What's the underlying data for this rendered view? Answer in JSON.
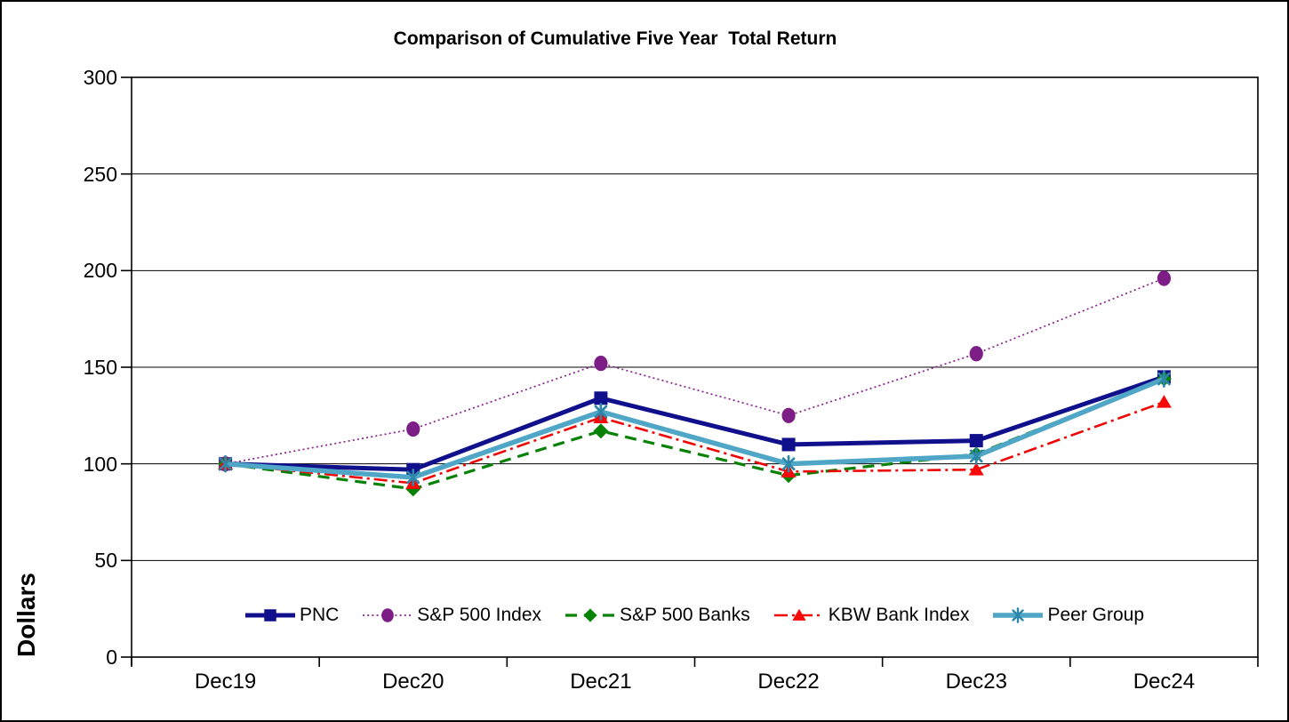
{
  "chart_data": {
    "type": "line",
    "title": "Comparison of Cumulative Five Year  Total Return",
    "ylabel": "Dollars",
    "xlabel": "",
    "categories": [
      "Dec19",
      "Dec20",
      "Dec21",
      "Dec22",
      "Dec23",
      "Dec24"
    ],
    "ylim": [
      0,
      300
    ],
    "yticks": [
      0,
      50,
      100,
      150,
      200,
      250,
      300
    ],
    "grid": "horizontal",
    "legend_position": "bottom-inside",
    "series": [
      {
        "name": "PNC",
        "values": [
          100,
          97,
          134,
          110,
          112,
          145
        ],
        "color": "#10108C",
        "marker": "square",
        "marker_color": "#10108C",
        "line_style": "solid",
        "line_width": 5
      },
      {
        "name": "S&P 500 Index",
        "values": [
          100,
          118,
          152,
          125,
          157,
          196
        ],
        "color": "#8A2090",
        "marker": "circle",
        "marker_color": "#7D1E87",
        "line_style": "dotted",
        "line_width": 1.7
      },
      {
        "name": "S&P 500 Banks",
        "values": [
          100,
          87,
          117,
          94,
          105,
          144
        ],
        "color": "#078207",
        "marker": "diamond",
        "marker_color": "#078207",
        "line_style": "dashed",
        "line_width": 3.2
      },
      {
        "name": "KBW Bank Index",
        "values": [
          100,
          90,
          124,
          96,
          97,
          132
        ],
        "color": "#EE0606",
        "marker": "triangle",
        "marker_color": "#F60909",
        "line_style": "dash-dot",
        "line_width": 2.6
      },
      {
        "name": "Peer Group",
        "values": [
          100,
          93,
          127,
          100,
          104,
          144
        ],
        "color": "#4FA6C6",
        "marker": "asterisk",
        "marker_color": "#2E86A8",
        "line_style": "solid",
        "line_width": 5.5
      }
    ]
  }
}
